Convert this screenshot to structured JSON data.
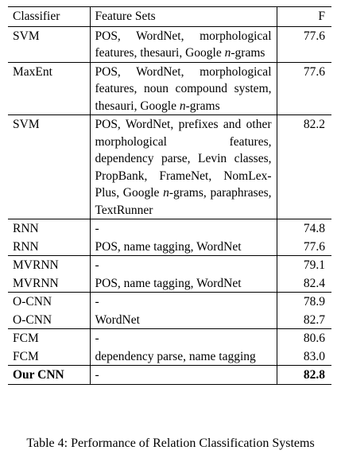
{
  "table": {
    "headers": [
      "Classifier",
      "Feature Sets",
      "F"
    ],
    "rows": [
      {
        "classifier": "SVM",
        "features": "POS, WordNet, morphological features, thesauri, Google n-grams",
        "f": "77.6",
        "group_start": true
      },
      {
        "classifier": "MaxEnt",
        "features": "POS, WordNet, morphological features, noun compound sys­tem, thesauri, Google n-grams",
        "f": "77.6",
        "group_start": true
      },
      {
        "classifier": "SVM",
        "features": "POS, WordNet, prefixes and other morphological fea­tures, dependency parse, Levin classes, PropBank, FrameNet, NomLex-Plus, Google n-grams, paraphrases, TextRunner",
        "f": "82.2",
        "group_start": true
      },
      {
        "classifier": "RNN",
        "features": "-",
        "f": "74.8",
        "group_start": true
      },
      {
        "classifier": "RNN",
        "features": "POS, name tagging, WordNet",
        "f": "77.6",
        "group_start": false
      },
      {
        "classifier": "MVRNN",
        "features": "-",
        "f": "79.1",
        "group_start": true
      },
      {
        "classifier": "MVRNN",
        "features": "POS, name tagging, WordNet",
        "f": "82.4",
        "group_start": false
      },
      {
        "classifier": "O-CNN",
        "features": "-",
        "f": "78.9",
        "group_start": true
      },
      {
        "classifier": "O-CNN",
        "features": "WordNet",
        "f": "82.7",
        "group_start": false
      },
      {
        "classifier": "FCM",
        "features": "-",
        "f": "80.6",
        "group_start": true
      },
      {
        "classifier": "FCM",
        "features": "dependency parse, name tag­ging",
        "f": "83.0",
        "group_start": false
      },
      {
        "classifier": "Our CNN",
        "features": "-",
        "f": "82.8",
        "group_start": true,
        "bold": true
      }
    ]
  },
  "caption": "Table 4: Performance of Relation Classification Systems"
}
